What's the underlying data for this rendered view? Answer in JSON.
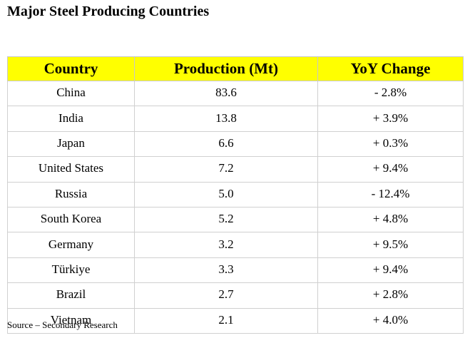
{
  "header": {
    "title": "Major Steel Producing Countries"
  },
  "table": {
    "columns": [
      "Country",
      "Production (Mt)",
      "YoY Change"
    ],
    "rows": [
      [
        "China",
        "83.6",
        "- 2.8%"
      ],
      [
        "India",
        "13.8",
        "+ 3.9%"
      ],
      [
        "Japan",
        "6.6",
        "+ 0.3%"
      ],
      [
        "United States",
        "7.2",
        "+ 9.4%"
      ],
      [
        "Russia",
        "5.0",
        "- 12.4%"
      ],
      [
        "South Korea",
        "5.2",
        "+ 4.8%"
      ],
      [
        "Germany",
        "3.2",
        "+ 9.5%"
      ],
      [
        "Türkiye",
        "3.3",
        "+ 9.4%"
      ],
      [
        "Brazil",
        "2.7",
        "+ 2.8%"
      ],
      [
        "Vietnam",
        "2.1",
        "+ 4.0%"
      ]
    ]
  },
  "footer": {
    "source": "Source – Secondary Research"
  }
}
